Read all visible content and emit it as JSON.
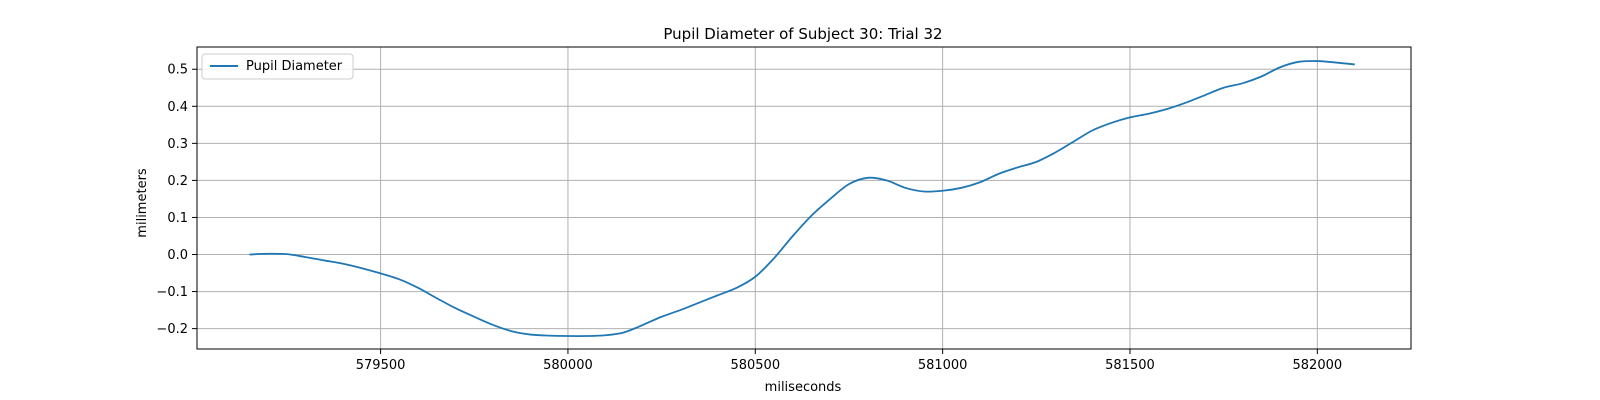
{
  "chart_data": {
    "type": "line",
    "title": "Pupil Diameter of Subject 30: Trial 32",
    "xlabel": "miliseconds",
    "ylabel": "milimeters",
    "xlim": [
      579010,
      582250
    ],
    "ylim": [
      -0.255,
      0.56
    ],
    "x_ticks": [
      579500,
      580000,
      580500,
      581000,
      581500,
      582000
    ],
    "y_ticks": [
      -0.2,
      -0.1,
      0.0,
      0.1,
      0.2,
      0.3,
      0.4,
      0.5
    ],
    "x_tick_labels": [
      "579500",
      "580000",
      "580500",
      "581000",
      "581500",
      "582000"
    ],
    "y_tick_labels": [
      "−0.2",
      "−0.1",
      "0.0",
      "0.1",
      "0.2",
      "0.3",
      "0.4",
      "0.5"
    ],
    "grid": true,
    "legend_position": "upper-left",
    "series": [
      {
        "name": "Pupil Diameter",
        "color": "#1f77b4",
        "x": [
          579150,
          579200,
          579250,
          579300,
          579350,
          579400,
          579450,
          579500,
          579550,
          579600,
          579650,
          579700,
          579750,
          579800,
          579850,
          579900,
          579950,
          580000,
          580050,
          580100,
          580150,
          580200,
          580250,
          580300,
          580350,
          580400,
          580450,
          580500,
          580550,
          580600,
          580650,
          580700,
          580750,
          580800,
          580850,
          580900,
          580950,
          581000,
          581050,
          581100,
          581150,
          581200,
          581250,
          581300,
          581350,
          581400,
          581450,
          581500,
          581550,
          581600,
          581650,
          581700,
          581750,
          581800,
          581850,
          581900,
          581950,
          582000,
          582050,
          582100
        ],
        "y": [
          0.0,
          0.002,
          0.001,
          -0.007,
          -0.016,
          -0.025,
          -0.037,
          -0.051,
          -0.067,
          -0.09,
          -0.118,
          -0.145,
          -0.168,
          -0.19,
          -0.207,
          -0.216,
          -0.219,
          -0.22,
          -0.22,
          -0.218,
          -0.21,
          -0.19,
          -0.168,
          -0.15,
          -0.13,
          -0.11,
          -0.09,
          -0.06,
          -0.01,
          0.05,
          0.105,
          0.15,
          0.19,
          0.207,
          0.2,
          0.18,
          0.17,
          0.172,
          0.18,
          0.195,
          0.218,
          0.235,
          0.25,
          0.275,
          0.305,
          0.335,
          0.355,
          0.37,
          0.38,
          0.393,
          0.41,
          0.43,
          0.45,
          0.462,
          0.48,
          0.505,
          0.52,
          0.522,
          0.518,
          0.513
        ]
      }
    ]
  }
}
